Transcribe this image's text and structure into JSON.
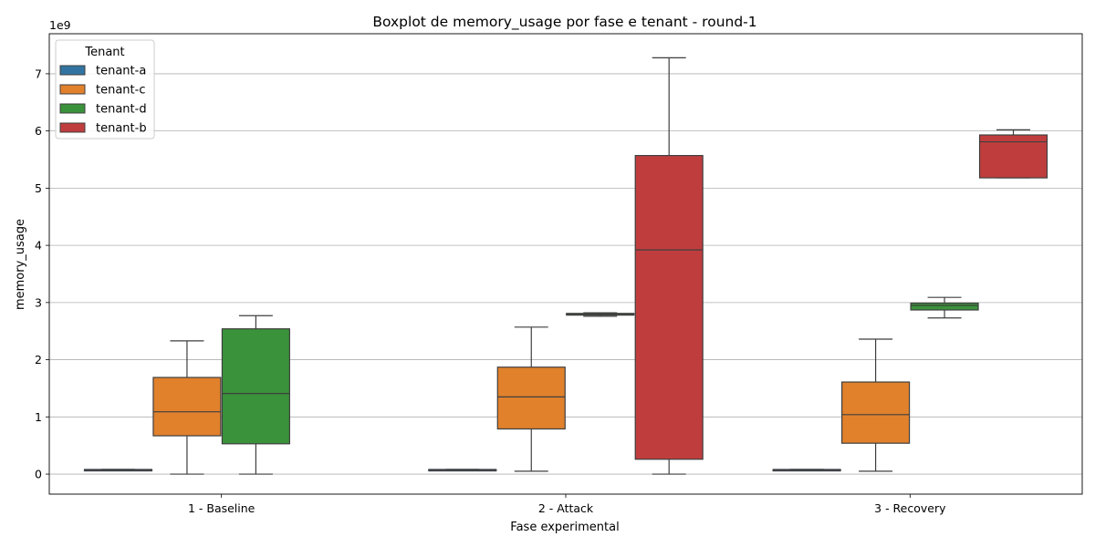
{
  "chart_data": {
    "type": "boxplot",
    "title": "Boxplot de memory_usage por fase e tenant - round-1",
    "xlabel": "Fase experimental",
    "ylabel": "memory_usage",
    "y_offset_label": "1e9",
    "ylim": [
      -0.35,
      7.7
    ],
    "yticks": [
      0,
      1,
      2,
      3,
      4,
      5,
      6,
      7
    ],
    "grid": "y",
    "categories": [
      "1 - Baseline",
      "2 - Attack",
      "3 - Recovery"
    ],
    "legend": {
      "title": "Tenant",
      "placement": "top-left",
      "entries": [
        "tenant-a",
        "tenant-c",
        "tenant-d",
        "tenant-b"
      ]
    },
    "series": [
      {
        "name": "tenant-a",
        "color": "#3274a1",
        "boxes": [
          {
            "whislo": 0.08,
            "q1": 0.08,
            "med": 0.08,
            "q3": 0.08,
            "whishi": 0.08
          },
          {
            "whislo": 0.08,
            "q1": 0.08,
            "med": 0.08,
            "q3": 0.08,
            "whishi": 0.08
          },
          {
            "whislo": 0.08,
            "q1": 0.08,
            "med": 0.08,
            "q3": 0.08,
            "whishi": 0.08
          }
        ]
      },
      {
        "name": "tenant-c",
        "color": "#e1812c",
        "boxes": [
          {
            "whislo": 0.0,
            "q1": 0.67,
            "med": 1.09,
            "q3": 1.69,
            "whishi": 2.33
          },
          {
            "whislo": 0.05,
            "q1": 0.79,
            "med": 1.35,
            "q3": 1.87,
            "whishi": 2.57
          },
          {
            "whislo": 0.05,
            "q1": 0.54,
            "med": 1.04,
            "q3": 1.61,
            "whishi": 2.36
          }
        ]
      },
      {
        "name": "tenant-d",
        "color": "#3a923a",
        "boxes": [
          {
            "whislo": 0.0,
            "q1": 0.53,
            "med": 1.41,
            "q3": 2.54,
            "whishi": 2.77
          },
          {
            "whislo": 2.76,
            "q1": 2.78,
            "med": 2.79,
            "q3": 2.81,
            "whishi": 2.82
          },
          {
            "whislo": 2.73,
            "q1": 2.87,
            "med": 2.95,
            "q3": 2.99,
            "whishi": 3.09
          }
        ]
      },
      {
        "name": "tenant-b",
        "color": "#c03d3e",
        "boxes": [
          null,
          {
            "whislo": 0.0,
            "q1": 0.26,
            "med": 3.92,
            "q3": 5.57,
            "whishi": 7.28
          },
          {
            "whislo": 5.18,
            "q1": 5.18,
            "med": 5.81,
            "q3": 5.93,
            "whishi": 6.02
          }
        ]
      }
    ]
  }
}
